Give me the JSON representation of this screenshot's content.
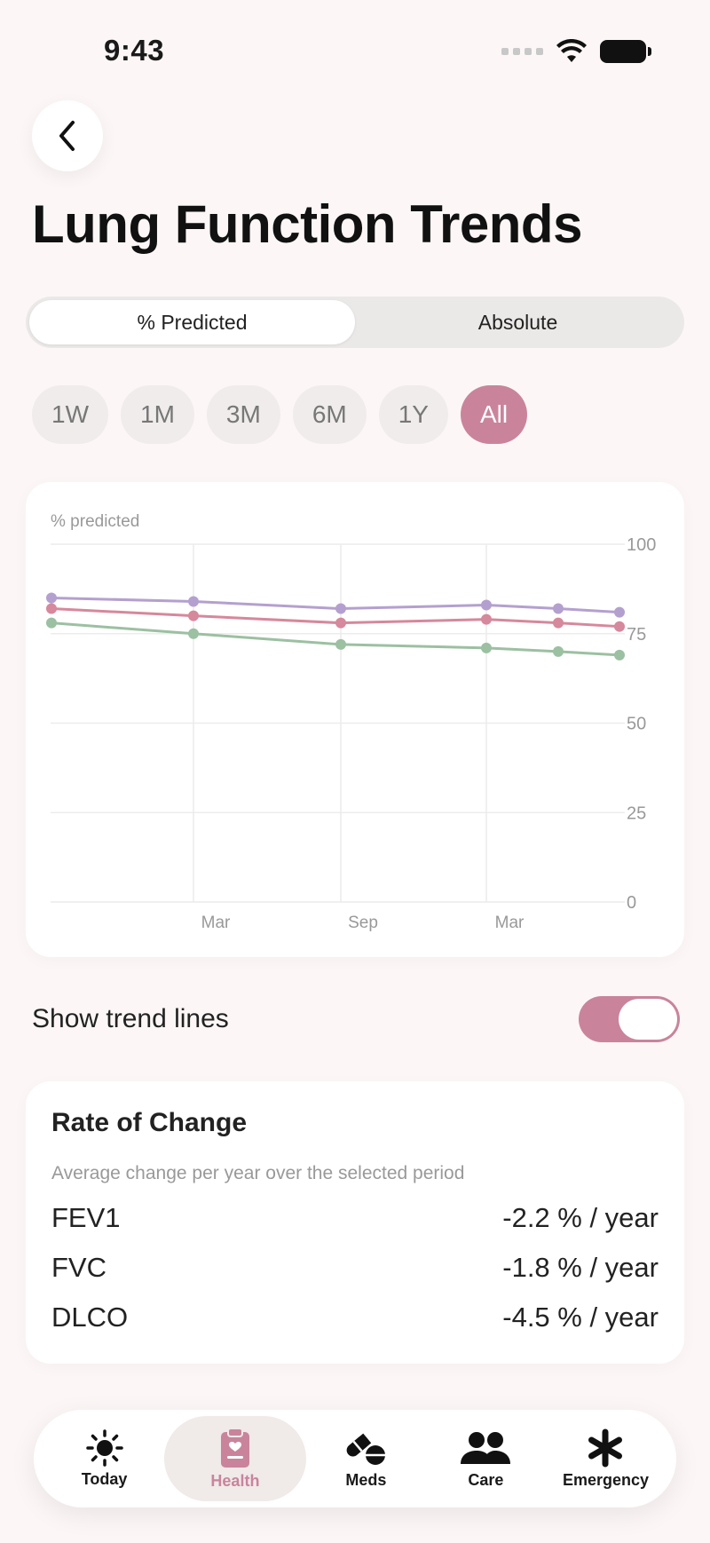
{
  "status_bar": {
    "time": "9:43"
  },
  "header": {
    "title": "Lung Function Trends"
  },
  "segmented": {
    "options": [
      "% Predicted",
      "Absolute"
    ],
    "selected": "% Predicted"
  },
  "ranges": {
    "options": [
      "1W",
      "1M",
      "3M",
      "6M",
      "1Y",
      "All"
    ],
    "selected": "All"
  },
  "chart_data": {
    "type": "line",
    "ylabel": "% predicted",
    "ylim": [
      0,
      100
    ],
    "yticks": [
      0,
      25,
      50,
      75,
      100
    ],
    "xticks": [
      "Mar",
      "Sep",
      "Mar"
    ],
    "series": [
      {
        "color": "#b4a0cf",
        "values": [
          85,
          84,
          82,
          83,
          82,
          81
        ]
      },
      {
        "color": "#d6889c",
        "values": [
          82,
          80,
          78,
          79,
          78,
          77
        ]
      },
      {
        "color": "#9cc0a2",
        "values": [
          78,
          75,
          72,
          71,
          70,
          69
        ]
      }
    ],
    "grid": true
  },
  "trend_toggle": {
    "label": "Show trend lines",
    "on": true
  },
  "rate_of_change": {
    "title": "Rate of Change",
    "subtitle": "Average change per year over the selected period",
    "rows": [
      {
        "name": "FEV1",
        "value": "-2.2 % / year"
      },
      {
        "name": "FVC",
        "value": "-1.8 % / year"
      },
      {
        "name": "DLCO",
        "value": "-4.5 % / year"
      }
    ]
  },
  "tabbar": {
    "tabs": [
      {
        "label": "Today",
        "icon": "sun-icon"
      },
      {
        "label": "Health",
        "icon": "clipboard-heart-icon"
      },
      {
        "label": "Meds",
        "icon": "pills-icon"
      },
      {
        "label": "Care",
        "icon": "people-icon"
      },
      {
        "label": "Emergency",
        "icon": "asterisk-icon"
      }
    ],
    "selected": "Health"
  },
  "colors": {
    "accent": "#c9849c",
    "background": "#fcf7f6"
  }
}
